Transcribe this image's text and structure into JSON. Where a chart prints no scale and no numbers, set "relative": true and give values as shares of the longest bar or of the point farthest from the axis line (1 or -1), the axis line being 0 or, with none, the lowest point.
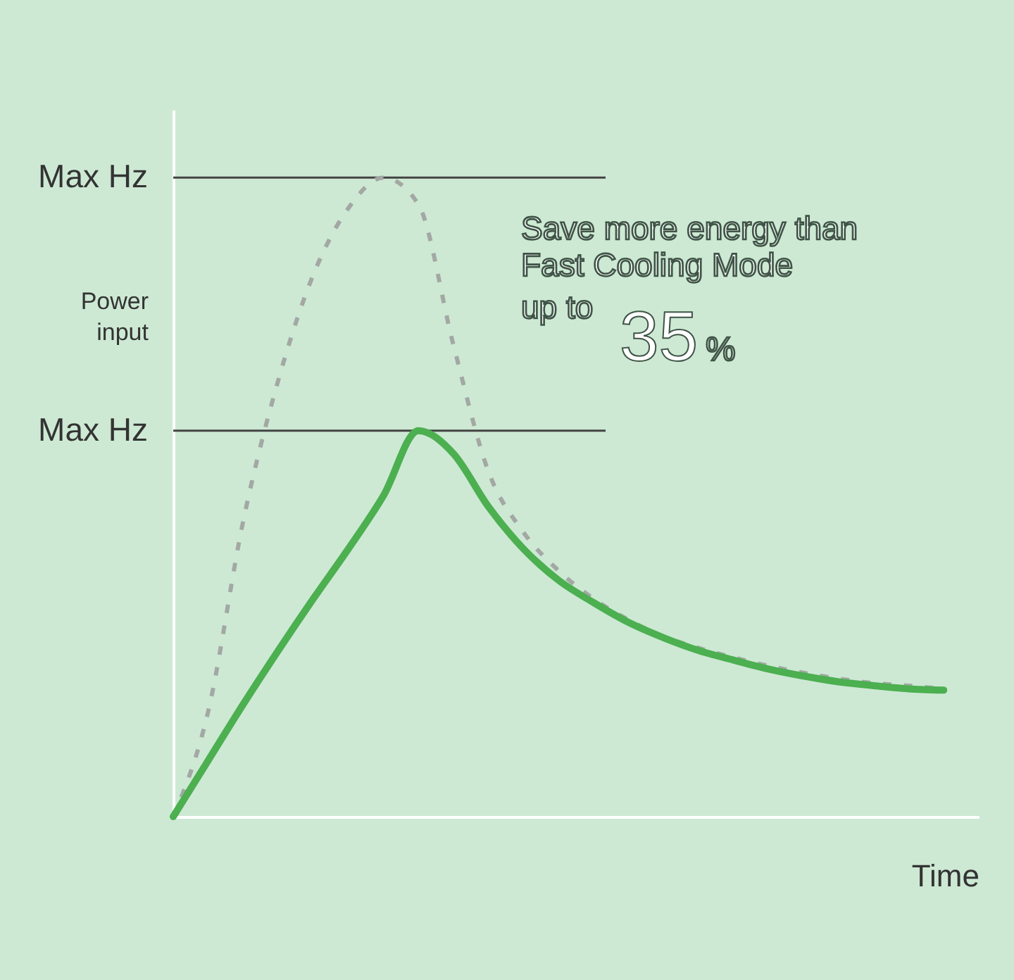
{
  "chart_data": {
    "type": "line",
    "relative": true,
    "xlabel": "Time",
    "ylabel": "Power input",
    "categories": [
      null,
      null,
      null,
      null,
      null,
      null,
      null,
      null,
      null,
      null,
      null,
      null,
      null,
      null,
      null,
      null,
      null,
      null,
      null,
      null,
      null,
      null,
      null
    ],
    "series": [
      {
        "color": "#a3a8a4",
        "line_style": "dashed",
        "values": [
          0,
          0.165,
          0.463,
          0.683,
          0.848,
          0.952,
          1,
          0.958,
          0.738,
          0.54,
          0.445,
          0.385,
          0.341,
          0.308,
          0.282,
          0.264,
          0.249,
          0.236,
          0.225,
          0.216,
          0.209,
          0.205,
          0.2
        ]
      },
      {
        "color": "#4caf50",
        "line_style": "solid",
        "values": [
          0,
          0.088,
          0.176,
          0.26,
          0.341,
          0.419,
          0.502,
          0.604,
          0.568,
          0.485,
          0.419,
          0.37,
          0.335,
          0.304,
          0.28,
          0.26,
          0.245,
          0.231,
          0.22,
          0.211,
          0.205,
          0.2,
          0.198
        ]
      }
    ],
    "ref_lines": [
      {
        "axis": "y",
        "value": 1,
        "label": "Max Hz"
      },
      {
        "axis": "y",
        "value": 0.604,
        "label": "Max Hz"
      }
    ],
    "annotations": [
      "Save more energy than",
      "Fast Cooling Mode",
      "up to",
      "35",
      "%"
    ],
    "grid": false
  }
}
